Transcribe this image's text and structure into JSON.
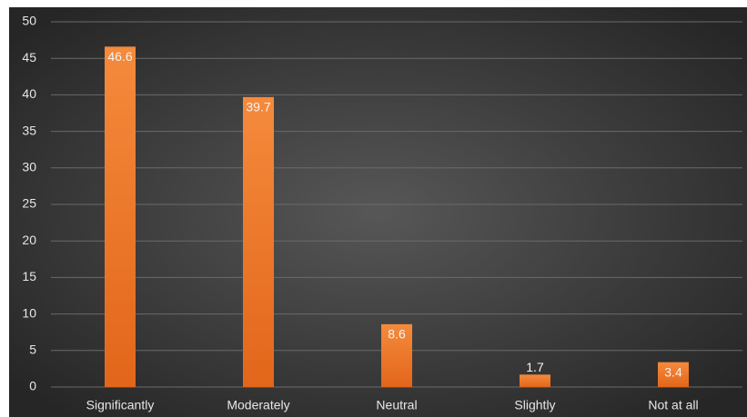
{
  "chart_data": {
    "type": "bar",
    "categories": [
      "Significantly",
      "Moderately",
      "Neutral",
      "Slightly",
      "Not at all"
    ],
    "values": [
      46.6,
      39.7,
      8.6,
      1.7,
      3.4
    ],
    "color": "#f07b2a",
    "ylim": [
      0,
      50
    ],
    "yticks": [
      0,
      5,
      10,
      15,
      20,
      25,
      30,
      35,
      40,
      45,
      50
    ],
    "grid": true
  }
}
